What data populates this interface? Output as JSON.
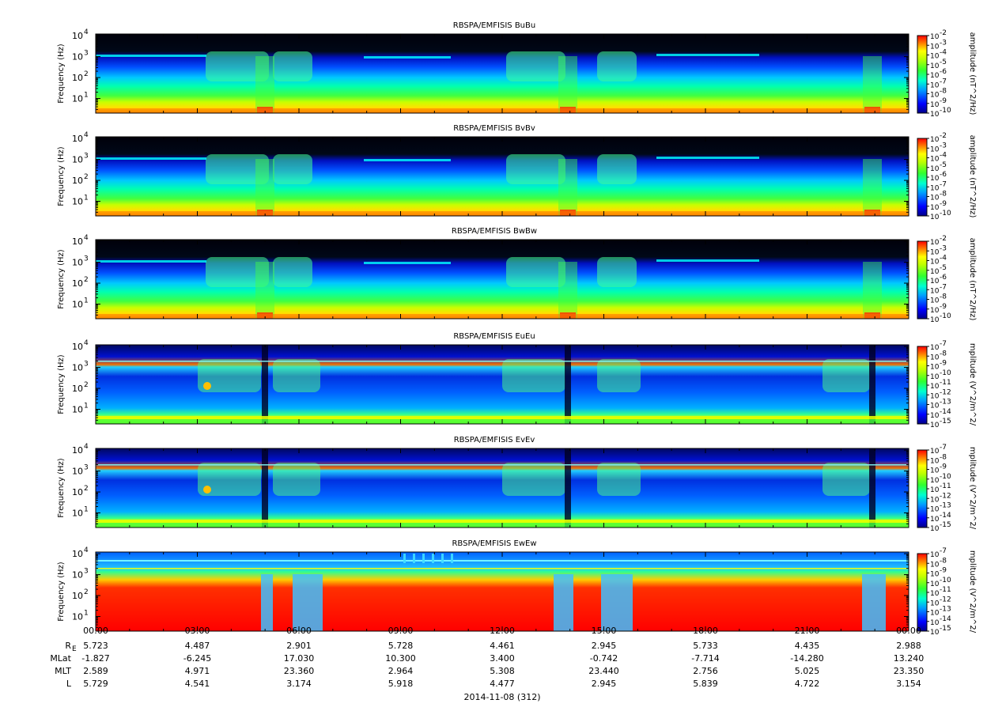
{
  "figure": {
    "date_label": "2014-11-08 (312)",
    "ephem_labels": [
      "R_E",
      "MLat",
      "MLT",
      "L"
    ],
    "x_tick_labels": [
      "00:00",
      "03:00",
      "06:00",
      "09:00",
      "12:00",
      "15:00",
      "18:00",
      "21:00",
      "00:00"
    ],
    "ephem_values": [
      [
        "5.723",
        "4.487",
        "2.901",
        "5.728",
        "4.461",
        "2.945",
        "5.733",
        "4.435",
        "2.988"
      ],
      [
        "-1.827",
        "-6.245",
        "17.030",
        "10.300",
        "3.400",
        "-0.742",
        "-7.714",
        "-14.280",
        "13.240"
      ],
      [
        "2.589",
        "4.971",
        "23.360",
        "2.964",
        "5.308",
        "23.440",
        "2.756",
        "5.025",
        "23.350"
      ],
      [
        "5.729",
        "4.541",
        "3.174",
        "5.918",
        "4.477",
        "2.945",
        "5.839",
        "4.722",
        "3.154"
      ]
    ]
  },
  "chart_data": [
    {
      "type": "heatmap",
      "title": "RBSPA/EMFISIS  BuBu",
      "ylabel": "Frequency (Hz)",
      "yscale": "log",
      "ylim": [
        2,
        12000
      ],
      "y_ticks": [
        "10^1",
        "10^2",
        "10^3",
        "10^4"
      ],
      "x_range": [
        "00:00",
        "00:00"
      ],
      "colorbar_label": "amplitude (nT^2/Hz)",
      "colorbar_ticks": [
        "-2",
        "-3",
        "-4",
        "-5",
        "-6",
        "-7",
        "-8",
        "-9",
        "-10"
      ],
      "colorbar_range_log10": [
        -10,
        -2
      ],
      "style": "mag"
    },
    {
      "type": "heatmap",
      "title": "RBSPA/EMFISIS  BvBv",
      "ylabel": "Frequency (Hz)",
      "yscale": "log",
      "ylim": [
        2,
        12000
      ],
      "y_ticks": [
        "10^1",
        "10^2",
        "10^3",
        "10^4"
      ],
      "x_range": [
        "00:00",
        "00:00"
      ],
      "colorbar_label": "amplitude (nT^2/Hz)",
      "colorbar_ticks": [
        "-2",
        "-3",
        "-4",
        "-5",
        "-6",
        "-7",
        "-8",
        "-9",
        "-10"
      ],
      "colorbar_range_log10": [
        -10,
        -2
      ],
      "style": "mag"
    },
    {
      "type": "heatmap",
      "title": "RBSPA/EMFISIS  BwBw",
      "ylabel": "Frequency (Hz)",
      "yscale": "log",
      "ylim": [
        2,
        12000
      ],
      "y_ticks": [
        "10^1",
        "10^2",
        "10^3",
        "10^4"
      ],
      "x_range": [
        "00:00",
        "00:00"
      ],
      "colorbar_label": "amplitude (nT^2/Hz)",
      "colorbar_ticks": [
        "-2",
        "-3",
        "-4",
        "-5",
        "-6",
        "-7",
        "-8",
        "-9",
        "-10"
      ],
      "colorbar_range_log10": [
        -10,
        -2
      ],
      "style": "mag"
    },
    {
      "type": "heatmap",
      "title": "RBSPA/EMFISIS  EuEu",
      "ylabel": "Frequency (Hz)",
      "yscale": "log",
      "ylim": [
        2,
        12000
      ],
      "y_ticks": [
        "10^1",
        "10^2",
        "10^3",
        "10^4"
      ],
      "x_range": [
        "00:00",
        "00:00"
      ],
      "colorbar_label": "mplitude (V^2/m^2/",
      "colorbar_ticks": [
        "-7",
        "-8",
        "-9",
        "-10",
        "-11",
        "-12",
        "-13",
        "-14",
        "-15"
      ],
      "colorbar_range_log10": [
        -15,
        -7
      ],
      "style": "elec"
    },
    {
      "type": "heatmap",
      "title": "RBSPA/EMFISIS  EvEv",
      "ylabel": "Frequency (Hz)",
      "yscale": "log",
      "ylim": [
        2,
        12000
      ],
      "y_ticks": [
        "10^1",
        "10^2",
        "10^3",
        "10^4"
      ],
      "x_range": [
        "00:00",
        "00:00"
      ],
      "colorbar_label": "mplitude (V^2/m^2/",
      "colorbar_ticks": [
        "-7",
        "-8",
        "-9",
        "-10",
        "-11",
        "-12",
        "-13",
        "-14",
        "-15"
      ],
      "colorbar_range_log10": [
        -15,
        -7
      ],
      "style": "elec"
    },
    {
      "type": "heatmap",
      "title": "RBSPA/EMFISIS  EwEw",
      "ylabel": "Frequency (Hz)",
      "yscale": "log",
      "ylim": [
        2,
        12000
      ],
      "y_ticks": [
        "10^1",
        "10^2",
        "10^3",
        "10^4"
      ],
      "x_range": [
        "00:00",
        "00:00"
      ],
      "colorbar_label": "mplitude (V^2/m^2/",
      "colorbar_ticks": [
        "-7",
        "-8",
        "-9",
        "-10",
        "-11",
        "-12",
        "-13",
        "-14",
        "-15"
      ],
      "colorbar_range_log10": [
        -15,
        -7
      ],
      "style": "ew"
    }
  ]
}
